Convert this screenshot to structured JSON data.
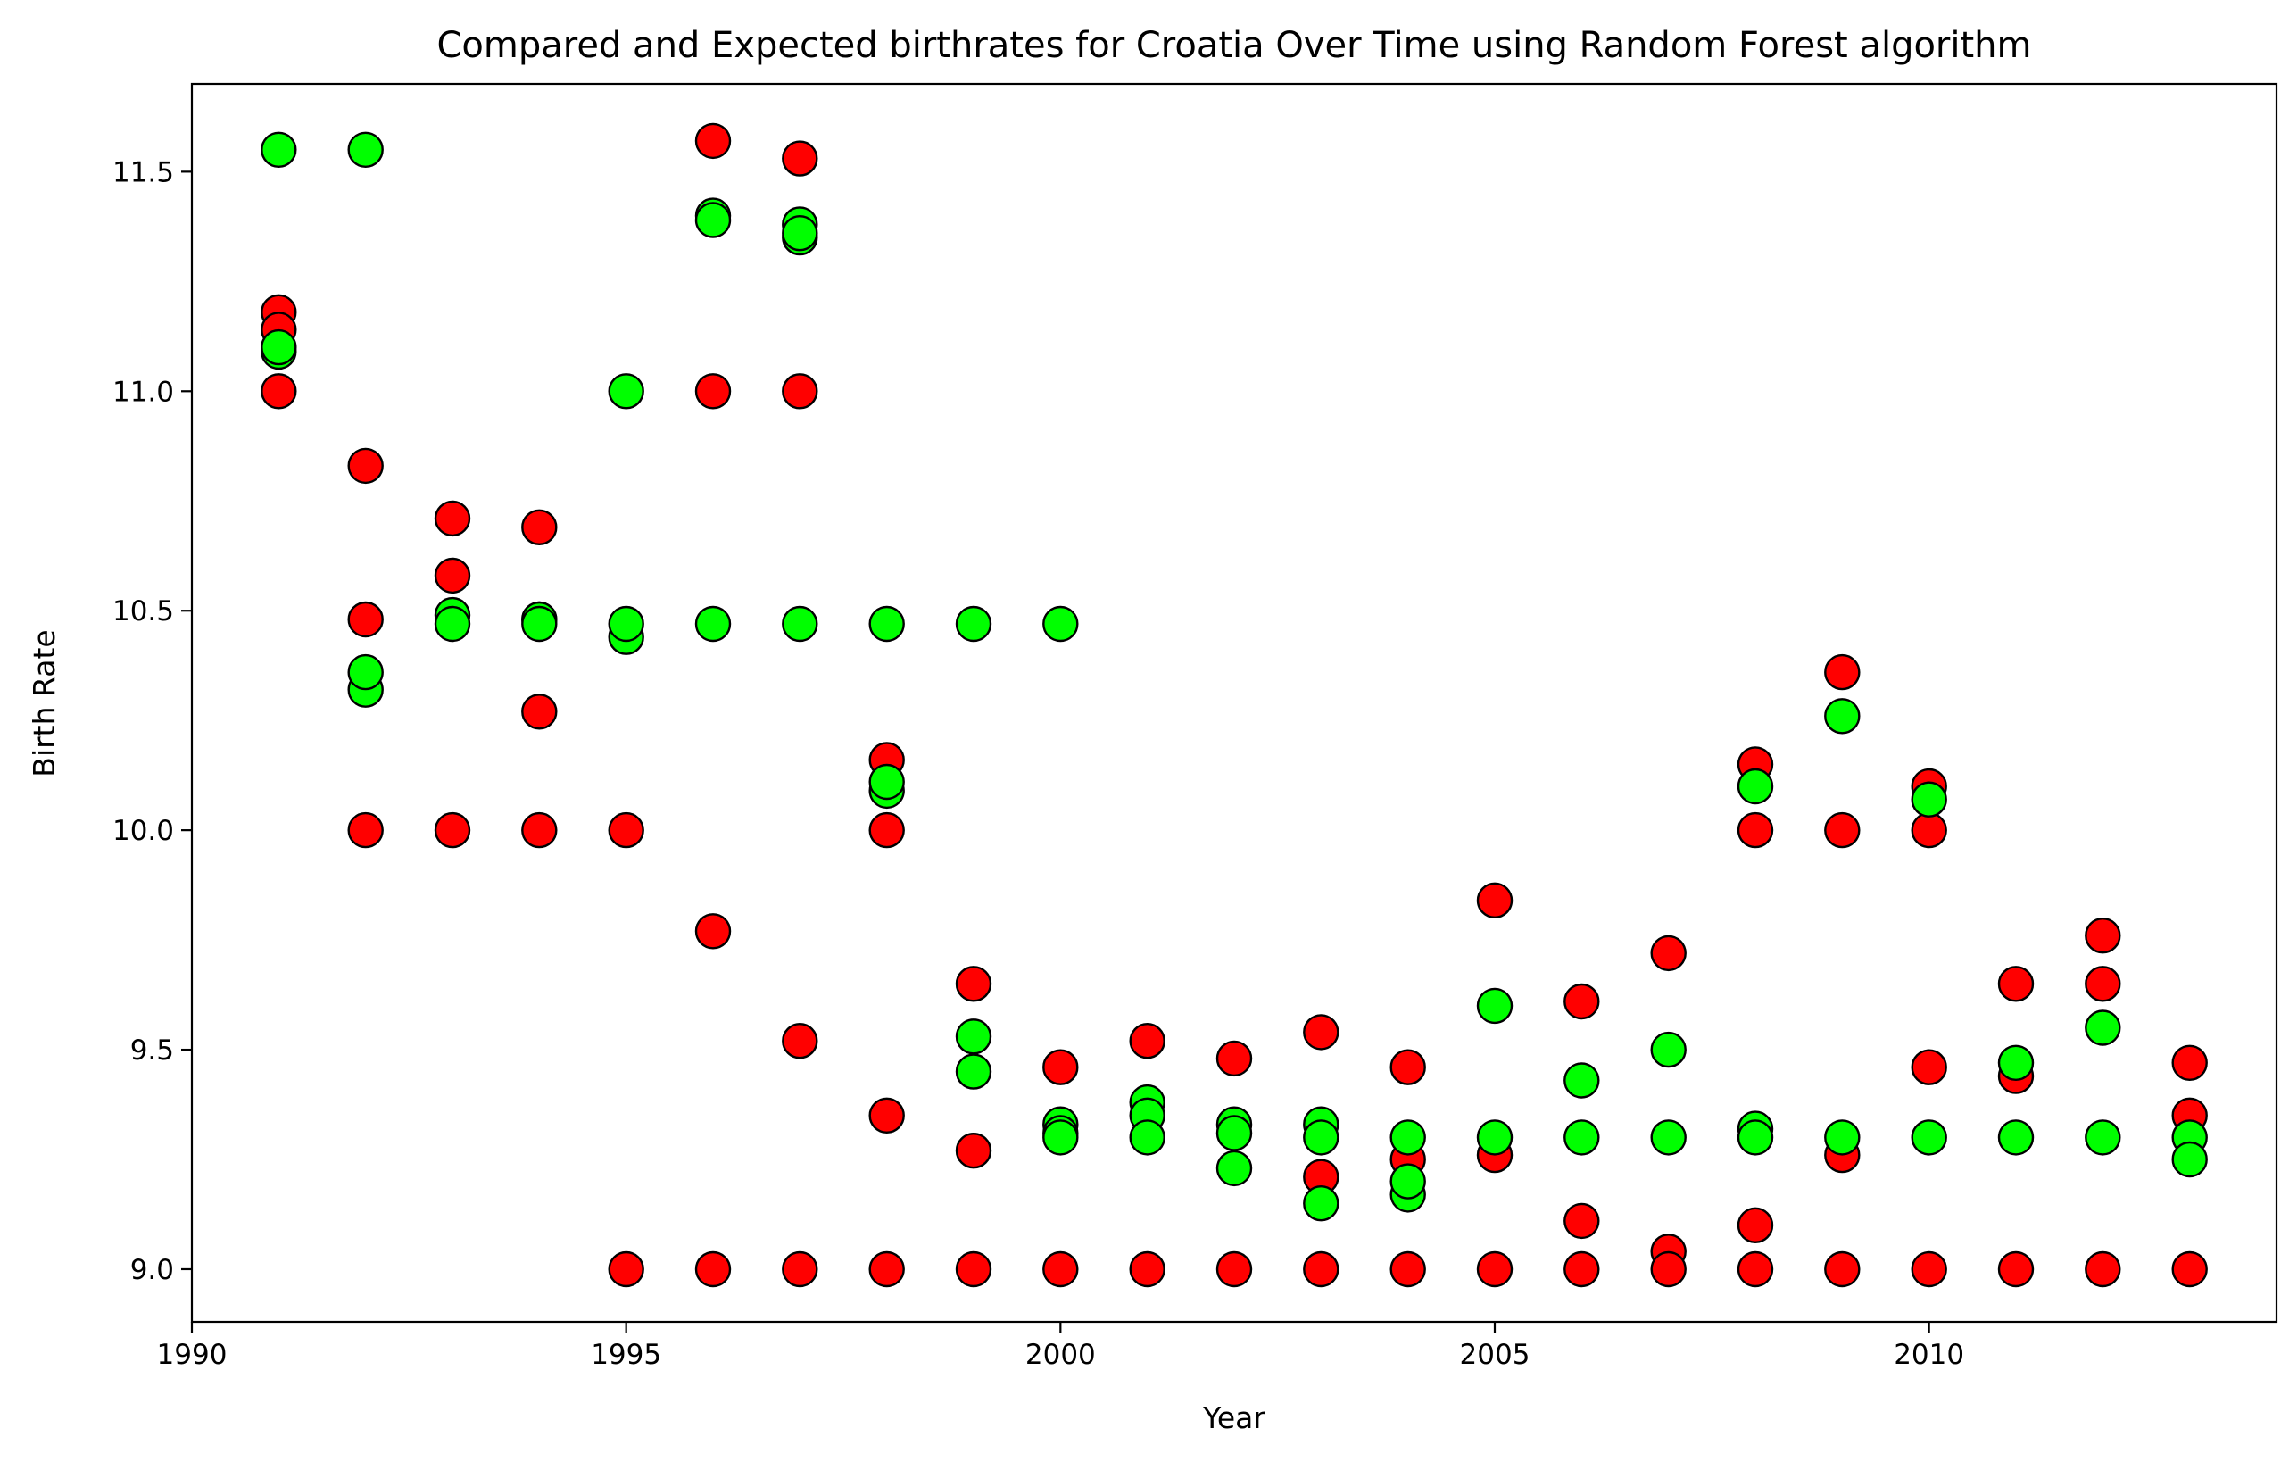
{
  "chart_data": {
    "type": "scatter",
    "title": "Compared and Expected birthrates for Croatia Over Time using Random Forest algorithm",
    "xlabel": "Year",
    "ylabel": "Birth Rate",
    "xlim": [
      1990,
      2014
    ],
    "ylim": [
      8.88,
      11.7
    ],
    "xticks": [
      1990,
      1995,
      2000,
      2005,
      2010
    ],
    "yticks": [
      9.0,
      9.5,
      10.0,
      10.5,
      11.0,
      11.5
    ],
    "ytick_labels": [
      "9.0",
      "9.5",
      "10.0",
      "10.5",
      "11.0",
      "11.5"
    ],
    "grid": false,
    "legend": "none",
    "series": [
      {
        "color": "#ff0000",
        "points": [
          [
            1991,
            11.18
          ],
          [
            1991,
            11.14
          ],
          [
            1991,
            11.0
          ],
          [
            1992,
            10.83
          ],
          [
            1992,
            10.48
          ],
          [
            1992,
            10.0
          ],
          [
            1993,
            10.71
          ],
          [
            1993,
            10.58
          ],
          [
            1993,
            10.0
          ],
          [
            1994,
            10.69
          ],
          [
            1994,
            10.48
          ],
          [
            1994,
            10.27
          ],
          [
            1994,
            10.0
          ],
          [
            1995,
            10.0
          ],
          [
            1995,
            9.0
          ],
          [
            1996,
            11.57
          ],
          [
            1996,
            11.0
          ],
          [
            1996,
            9.77
          ],
          [
            1996,
            9.0
          ],
          [
            1997,
            11.53
          ],
          [
            1997,
            11.0
          ],
          [
            1997,
            9.52
          ],
          [
            1997,
            9.0
          ],
          [
            1998,
            10.16
          ],
          [
            1998,
            10.0
          ],
          [
            1998,
            9.35
          ],
          [
            1998,
            9.0
          ],
          [
            1999,
            9.65
          ],
          [
            1999,
            9.27
          ],
          [
            1999,
            9.0
          ],
          [
            2000,
            9.46
          ],
          [
            2000,
            9.0
          ],
          [
            2001,
            9.52
          ],
          [
            2001,
            9.0
          ],
          [
            2002,
            9.48
          ],
          [
            2002,
            9.0
          ],
          [
            2003,
            9.54
          ],
          [
            2003,
            9.21
          ],
          [
            2003,
            9.0
          ],
          [
            2004,
            9.46
          ],
          [
            2004,
            9.25
          ],
          [
            2004,
            9.0
          ],
          [
            2005,
            9.84
          ],
          [
            2005,
            9.26
          ],
          [
            2005,
            9.0
          ],
          [
            2006,
            9.61
          ],
          [
            2006,
            9.11
          ],
          [
            2006,
            9.0
          ],
          [
            2007,
            9.72
          ],
          [
            2007,
            9.04
          ],
          [
            2007,
            9.0
          ],
          [
            2008,
            10.15
          ],
          [
            2008,
            10.0
          ],
          [
            2008,
            9.1
          ],
          [
            2008,
            9.0
          ],
          [
            2009,
            10.36
          ],
          [
            2009,
            10.0
          ],
          [
            2009,
            9.26
          ],
          [
            2009,
            9.0
          ],
          [
            2010,
            10.1
          ],
          [
            2010,
            10.0
          ],
          [
            2010,
            9.46
          ],
          [
            2010,
            9.0
          ],
          [
            2011,
            9.65
          ],
          [
            2011,
            9.44
          ],
          [
            2011,
            9.0
          ],
          [
            2012,
            9.76
          ],
          [
            2012,
            9.65
          ],
          [
            2012,
            9.0
          ],
          [
            2013,
            9.47
          ],
          [
            2013,
            9.35
          ],
          [
            2013,
            9.0
          ]
        ]
      },
      {
        "color": "#00ff00",
        "points": [
          [
            1991,
            11.55
          ],
          [
            1991,
            11.09
          ],
          [
            1991,
            11.1
          ],
          [
            1992,
            11.55
          ],
          [
            1992,
            10.32
          ],
          [
            1992,
            10.36
          ],
          [
            1993,
            10.49
          ],
          [
            1993,
            10.47
          ],
          [
            1994,
            10.48
          ],
          [
            1994,
            10.47
          ],
          [
            1995,
            11.0
          ],
          [
            1995,
            10.44
          ],
          [
            1995,
            10.47
          ],
          [
            1996,
            11.4
          ],
          [
            1996,
            11.39
          ],
          [
            1996,
            10.47
          ],
          [
            1997,
            11.38
          ],
          [
            1997,
            11.35
          ],
          [
            1997,
            11.36
          ],
          [
            1997,
            10.47
          ],
          [
            1998,
            10.47
          ],
          [
            1998,
            10.09
          ],
          [
            1998,
            10.11
          ],
          [
            1999,
            10.47
          ],
          [
            1999,
            9.53
          ],
          [
            1999,
            9.45
          ],
          [
            2000,
            10.47
          ],
          [
            2000,
            9.33
          ],
          [
            2000,
            9.31
          ],
          [
            2000,
            9.3
          ],
          [
            2001,
            9.38
          ],
          [
            2001,
            9.35
          ],
          [
            2001,
            9.3
          ],
          [
            2002,
            9.33
          ],
          [
            2002,
            9.31
          ],
          [
            2002,
            9.23
          ],
          [
            2003,
            9.33
          ],
          [
            2003,
            9.3
          ],
          [
            2003,
            9.15
          ],
          [
            2004,
            9.3
          ],
          [
            2004,
            9.17
          ],
          [
            2004,
            9.2
          ],
          [
            2005,
            9.6
          ],
          [
            2005,
            9.3
          ],
          [
            2006,
            9.43
          ],
          [
            2006,
            9.3
          ],
          [
            2007,
            9.5
          ],
          [
            2007,
            9.3
          ],
          [
            2008,
            10.1
          ],
          [
            2008,
            9.32
          ],
          [
            2008,
            9.3
          ],
          [
            2009,
            10.26
          ],
          [
            2009,
            9.3
          ],
          [
            2010,
            10.07
          ],
          [
            2010,
            9.3
          ],
          [
            2011,
            9.47
          ],
          [
            2011,
            9.3
          ],
          [
            2012,
            9.55
          ],
          [
            2012,
            9.3
          ],
          [
            2013,
            9.3
          ],
          [
            2013,
            9.25
          ]
        ]
      }
    ]
  }
}
